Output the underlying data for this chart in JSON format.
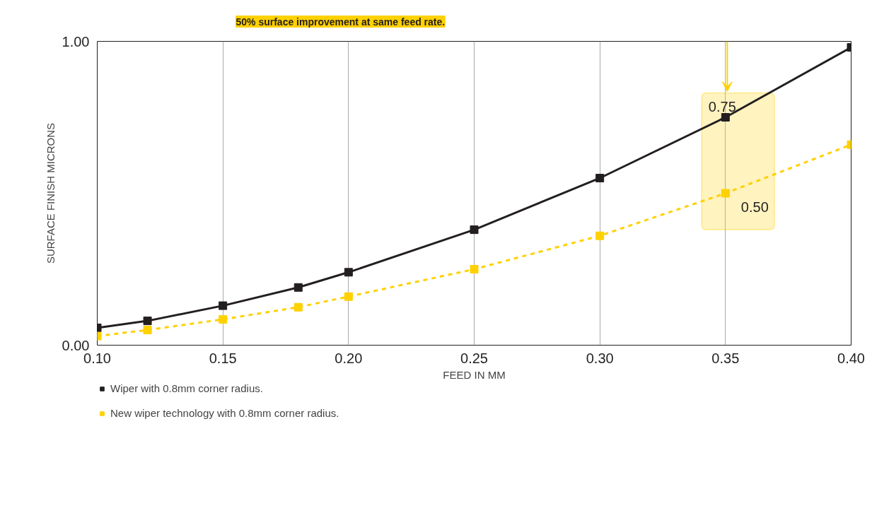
{
  "chart_data": {
    "type": "line",
    "xlabel": "FEED IN MM",
    "ylabel": "SURFACE FINISH MICRONS",
    "x": [
      0.1,
      0.12,
      0.15,
      0.18,
      0.2,
      0.25,
      0.3,
      0.35,
      0.4
    ],
    "series": [
      {
        "name": "Wiper with 0.8mm corner radius.",
        "color": "#231f20",
        "line_style": "solid",
        "values": [
          0.057,
          0.08,
          0.13,
          0.19,
          0.24,
          0.38,
          0.55,
          0.75,
          0.98
        ],
        "value_labels": [
          null,
          null,
          null,
          null,
          null,
          null,
          null,
          "0.75",
          null
        ]
      },
      {
        "name": "New wiper technology with 0.8mm corner radius.",
        "color": "#ffd100",
        "line_style": "dashed",
        "values": [
          0.03,
          0.05,
          0.085,
          0.125,
          0.16,
          0.25,
          0.36,
          0.5,
          0.66
        ],
        "value_labels": [
          null,
          null,
          null,
          null,
          null,
          null,
          null,
          "0.50",
          null
        ]
      }
    ],
    "xlim": [
      0.1,
      0.4
    ],
    "ylim": [
      0,
      1
    ],
    "xticks": [
      {
        "value": 0.1,
        "label": "0.10"
      },
      {
        "value": 0.15,
        "label": "0.15"
      },
      {
        "value": 0.2,
        "label": "0.20"
      },
      {
        "value": 0.25,
        "label": "0.25"
      },
      {
        "value": 0.3,
        "label": "0.30"
      },
      {
        "value": 0.35,
        "label": "0.35"
      },
      {
        "value": 0.4,
        "label": "0.40"
      }
    ],
    "yticks": [
      {
        "value": 0,
        "label": "0.00"
      },
      {
        "value": 1,
        "label": "1.00"
      }
    ],
    "grid": "x",
    "marker": "square",
    "legend": "bottom",
    "annotations": [
      "50% surface improvement at same feed rate."
    ]
  }
}
